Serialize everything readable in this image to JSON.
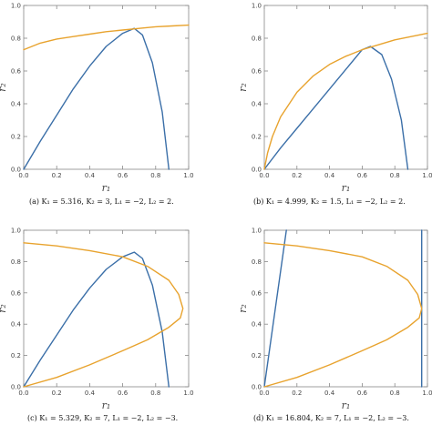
{
  "chart_data": [
    {
      "type": "line",
      "caption": "(a) K₁ = 5.316, K₂ = 3, L₁ = −2, L₂ = 2.",
      "xlabel": "r₁",
      "ylabel": "r₂",
      "xlim": [
        0,
        1
      ],
      "ylim": [
        0,
        1
      ],
      "xticks": [
        "0.0",
        "0.2",
        "0.4",
        "0.6",
        "0.8",
        "1.0"
      ],
      "yticks": [
        "0.0",
        "0.2",
        "0.4",
        "0.6",
        "0.8",
        "1.0"
      ],
      "grid": false,
      "series": [
        {
          "color": "#3b6fa8",
          "x": [
            0.0,
            0.1,
            0.2,
            0.3,
            0.4,
            0.5,
            0.6,
            0.67,
            0.72,
            0.78,
            0.84,
            0.88
          ],
          "y": [
            0.0,
            0.17,
            0.33,
            0.49,
            0.63,
            0.75,
            0.83,
            0.86,
            0.82,
            0.65,
            0.35,
            0.0
          ]
        },
        {
          "color": "#e8a32e",
          "x": [
            0.0,
            0.1,
            0.2,
            0.3,
            0.4,
            0.5,
            0.6,
            0.7,
            0.8,
            0.9,
            1.0
          ],
          "y": [
            0.73,
            0.77,
            0.795,
            0.81,
            0.825,
            0.84,
            0.85,
            0.86,
            0.87,
            0.875,
            0.88
          ]
        }
      ]
    },
    {
      "type": "line",
      "caption": "(b) K₁ = 4.999, K₂ = 1.5, L₁ = −2, L₂ = 2.",
      "xlabel": "r₁",
      "ylabel": "r₂",
      "xlim": [
        0,
        1
      ],
      "ylim": [
        0,
        1
      ],
      "xticks": [
        "0.0",
        "0.2",
        "0.4",
        "0.6",
        "0.8",
        "1.0"
      ],
      "yticks": [
        "0.0",
        "0.2",
        "0.4",
        "0.6",
        "0.8",
        "1.0"
      ],
      "grid": false,
      "series": [
        {
          "color": "#3b6fa8",
          "x": [
            0.0,
            0.1,
            0.2,
            0.3,
            0.4,
            0.5,
            0.6,
            0.65,
            0.72,
            0.78,
            0.84,
            0.88
          ],
          "y": [
            0.0,
            0.13,
            0.25,
            0.37,
            0.49,
            0.61,
            0.73,
            0.75,
            0.7,
            0.55,
            0.3,
            0.0
          ]
        },
        {
          "color": "#e8a32e",
          "x": [
            0.0,
            0.02,
            0.05,
            0.1,
            0.2,
            0.3,
            0.4,
            0.5,
            0.6,
            0.7,
            0.8,
            0.9,
            1.0
          ],
          "y": [
            0.0,
            0.1,
            0.2,
            0.32,
            0.47,
            0.57,
            0.64,
            0.69,
            0.73,
            0.76,
            0.79,
            0.81,
            0.83
          ]
        }
      ]
    },
    {
      "type": "line",
      "caption": "(c) K₁ = 5.329, K₂ = 7, L₁ = −2, L₂ = −3.",
      "xlabel": "r₁",
      "ylabel": "r₂",
      "xlim": [
        0,
        1
      ],
      "ylim": [
        0,
        1
      ],
      "xticks": [
        "0.0",
        "0.2",
        "0.4",
        "0.6",
        "0.8",
        "1.0"
      ],
      "yticks": [
        "0.0",
        "0.2",
        "0.4",
        "0.6",
        "0.8",
        "1.0"
      ],
      "grid": false,
      "series": [
        {
          "color": "#3b6fa8",
          "x": [
            0.0,
            0.1,
            0.2,
            0.3,
            0.4,
            0.5,
            0.6,
            0.67,
            0.72,
            0.78,
            0.84,
            0.88
          ],
          "y": [
            0.0,
            0.17,
            0.33,
            0.49,
            0.63,
            0.75,
            0.83,
            0.86,
            0.82,
            0.65,
            0.35,
            0.0
          ]
        },
        {
          "color": "#e8a32e",
          "x": [
            0.0,
            0.2,
            0.4,
            0.6,
            0.75,
            0.88,
            0.94,
            0.965,
            0.95,
            0.88,
            0.75,
            0.6,
            0.4,
            0.2,
            0.0
          ],
          "y": [
            0.92,
            0.9,
            0.87,
            0.83,
            0.77,
            0.68,
            0.59,
            0.5,
            0.44,
            0.38,
            0.3,
            0.23,
            0.14,
            0.06,
            0.0
          ]
        }
      ]
    },
    {
      "type": "line",
      "caption": "(d) K₁ = 16.804, K₂ = 7, L₁ = −2, L₂ = −3.",
      "xlabel": "r₁",
      "ylabel": "r₂",
      "xlim": [
        0,
        1
      ],
      "ylim": [
        0,
        1
      ],
      "xticks": [
        "0.0",
        "0.2",
        "0.4",
        "0.6",
        "0.8",
        "1.0"
      ],
      "yticks": [
        "0.0",
        "0.2",
        "0.4",
        "0.6",
        "0.8",
        "1.0"
      ],
      "grid": false,
      "series": [
        {
          "color": "#3b6fa8",
          "x": [
            0.0,
            0.135
          ],
          "y": [
            0.0,
            1.0
          ]
        },
        {
          "color": "#3b6fa8",
          "x": [
            0.965,
            0.965
          ],
          "y": [
            0.0,
            1.0
          ]
        },
        {
          "color": "#e8a32e",
          "x": [
            0.0,
            0.2,
            0.4,
            0.6,
            0.75,
            0.88,
            0.94,
            0.965,
            0.95,
            0.88,
            0.75,
            0.6,
            0.4,
            0.2,
            0.0
          ],
          "y": [
            0.92,
            0.9,
            0.87,
            0.83,
            0.77,
            0.68,
            0.59,
            0.5,
            0.44,
            0.38,
            0.3,
            0.23,
            0.14,
            0.06,
            0.0
          ]
        }
      ]
    }
  ]
}
